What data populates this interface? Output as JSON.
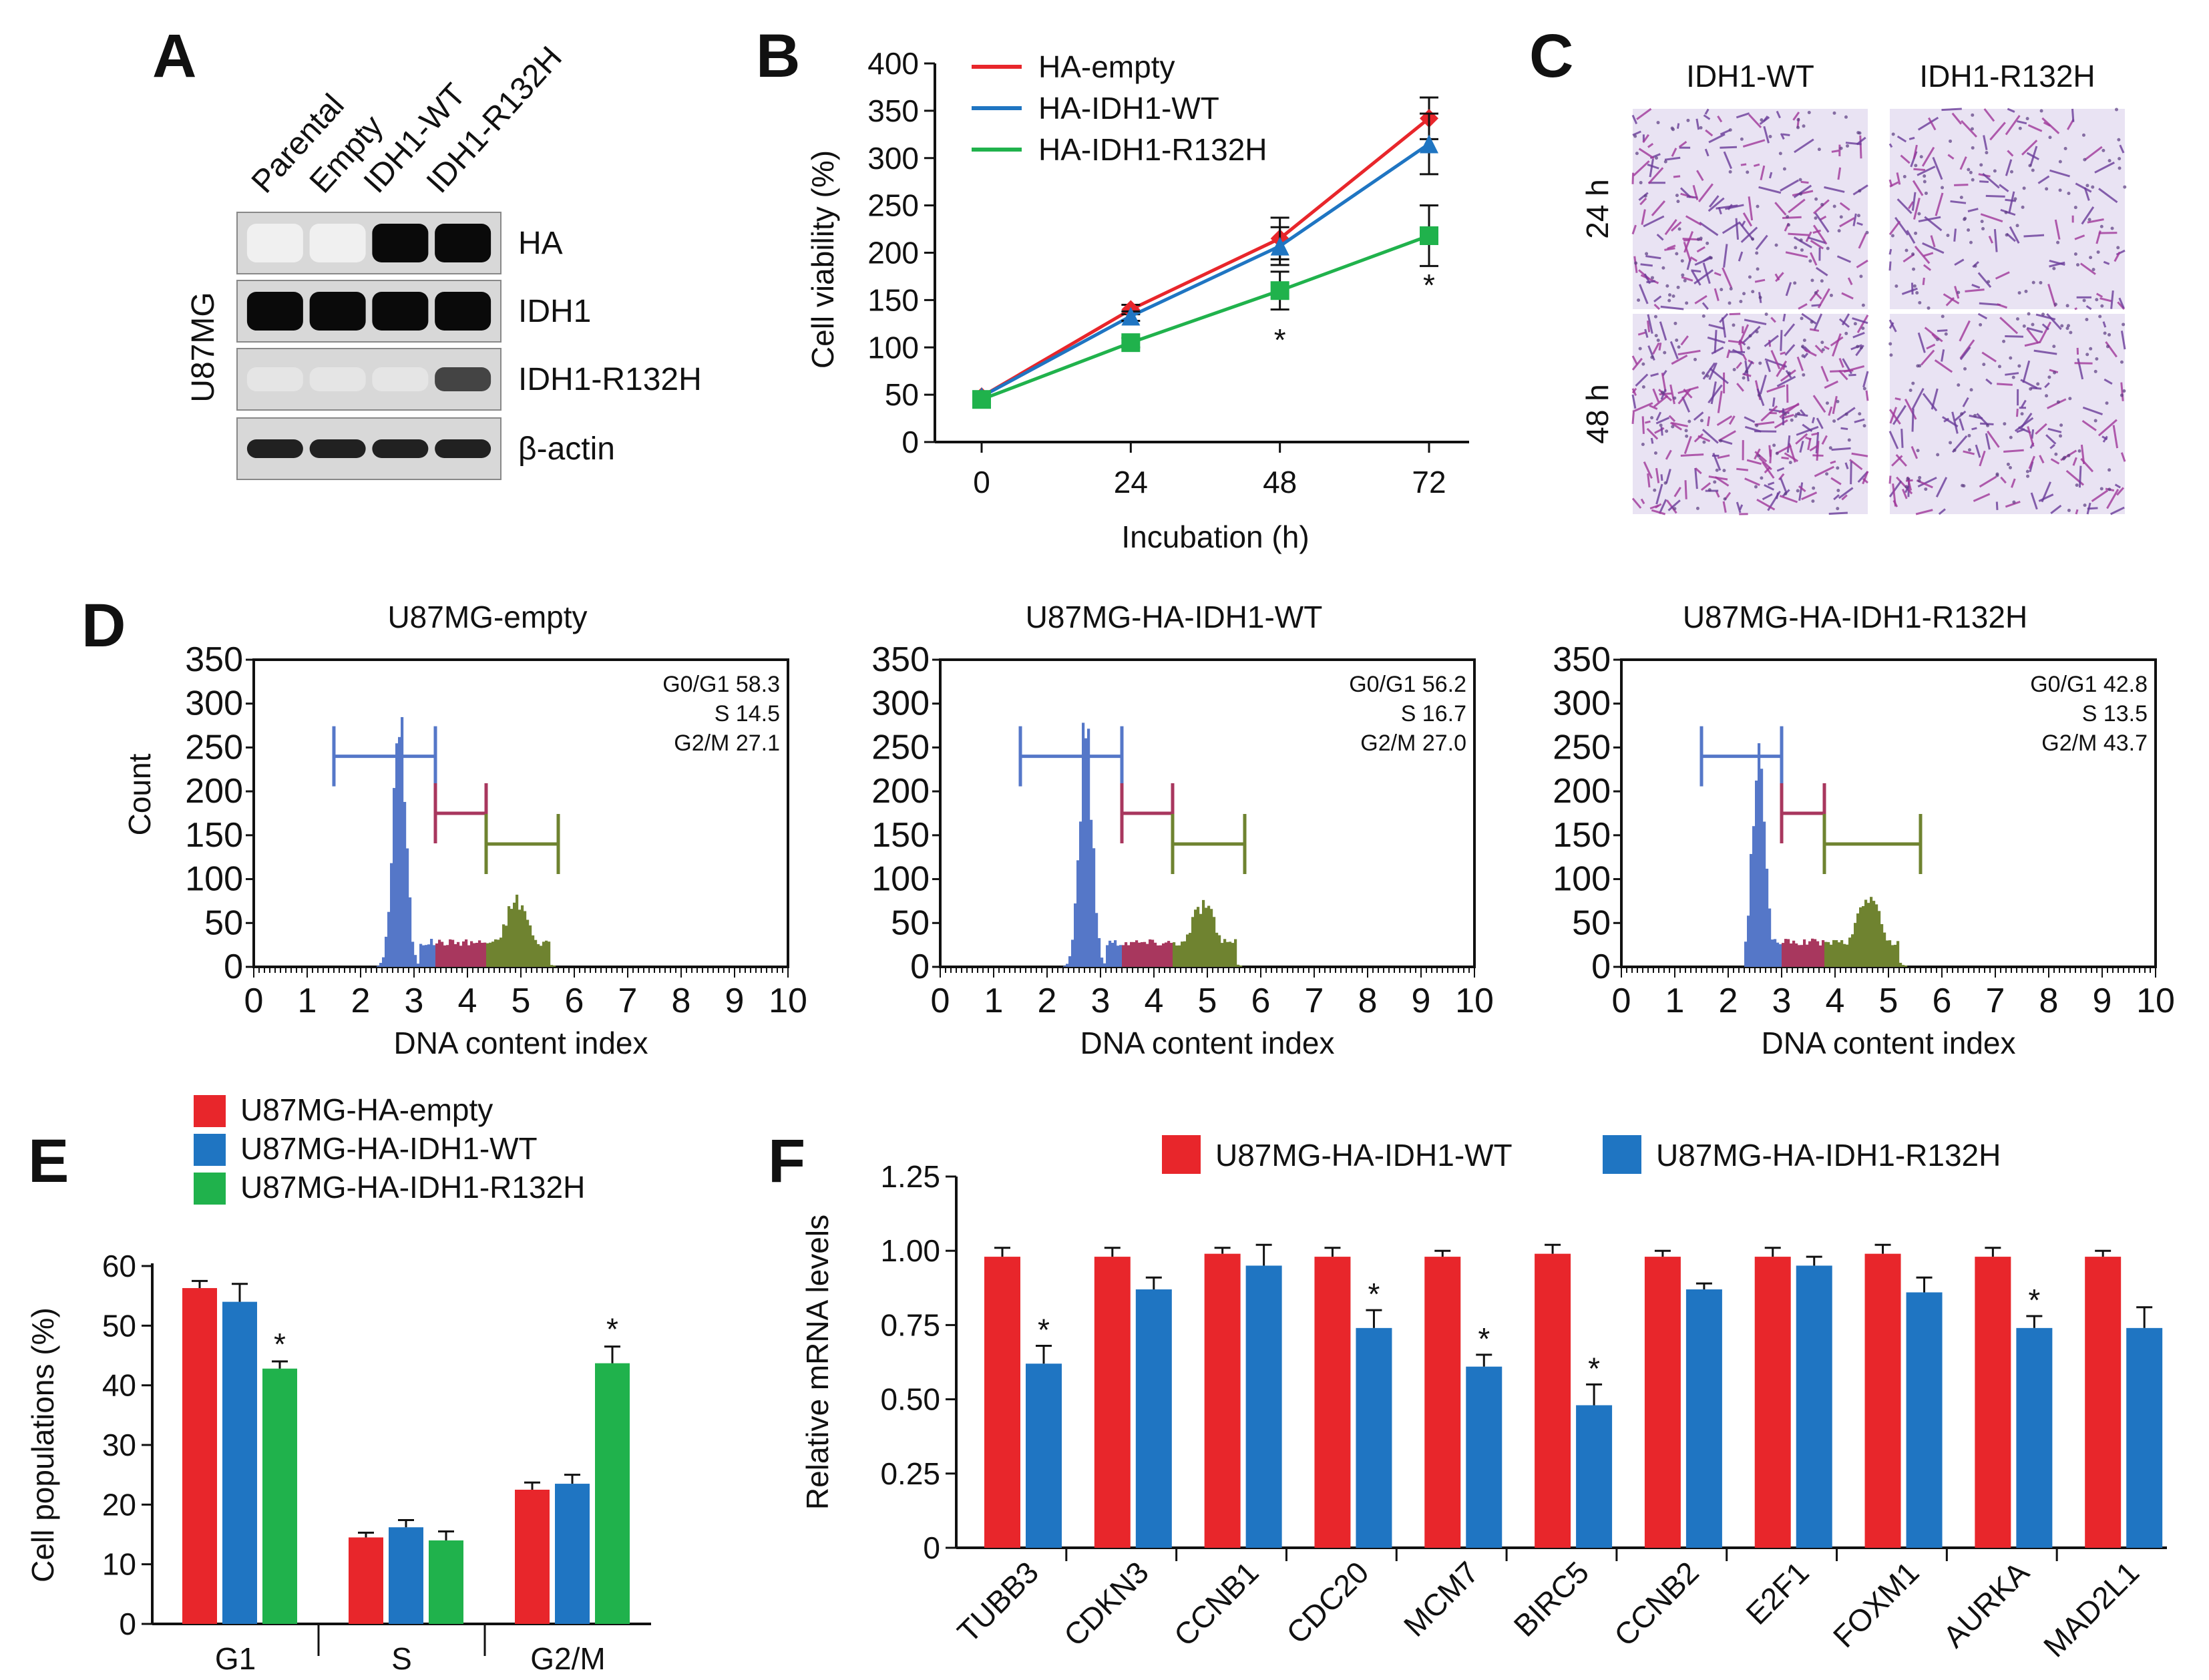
{
  "panels": {
    "A": {
      "label": "A",
      "cell_line": "U87MG",
      "lanes": [
        "Parental",
        "Empty",
        "IDH1-WT",
        "IDH1-R132H"
      ],
      "rows": [
        "HA",
        "IDH1",
        "IDH1-R132H",
        "β-actin"
      ],
      "band_intensity": [
        [
          0,
          0,
          1,
          1
        ],
        [
          1,
          1,
          1,
          1
        ],
        [
          0.05,
          0.05,
          0.05,
          0.75
        ],
        [
          0.9,
          0.9,
          0.9,
          0.9
        ]
      ]
    },
    "B": {
      "label": "B"
    },
    "C": {
      "label": "C",
      "columns": [
        "IDH1-WT",
        "IDH1-R132H"
      ],
      "rows": [
        "24 h",
        "48 h"
      ],
      "stain_density": [
        [
          0.55,
          0.35
        ],
        [
          0.95,
          0.45
        ]
      ]
    },
    "D": {
      "label": "D"
    },
    "E": {
      "label": "E"
    },
    "F": {
      "label": "F"
    }
  },
  "chart_data": [
    {
      "id": "B",
      "type": "line",
      "x": [
        0,
        24,
        48,
        72
      ],
      "xlabel": "Incubation (h)",
      "ylabel": "Cell viability (%)",
      "ylim": [
        0,
        400
      ],
      "yticks": [
        "0",
        "50",
        "100",
        "150",
        "200",
        "250",
        "300",
        "350",
        "400"
      ],
      "xticks": [
        "0",
        "24",
        "48",
        "72"
      ],
      "legend_position": "top-left",
      "series": [
        {
          "name": "HA-empty",
          "color": "#e8262b",
          "marker": "diamond",
          "values": [
            48,
            140,
            215,
            342
          ],
          "err": [
            3,
            5,
            22,
            22
          ]
        },
        {
          "name": "HA-IDH1-WT",
          "color": "#1f75c2",
          "marker": "triangle",
          "values": [
            48,
            133,
            207,
            315
          ],
          "err": [
            3,
            5,
            20,
            32
          ]
        },
        {
          "name": "HA-IDH1-R132H",
          "color": "#20b24c",
          "marker": "square",
          "values": [
            45,
            105,
            160,
            218
          ],
          "err": [
            3,
            5,
            20,
            32
          ]
        }
      ],
      "annotations": [
        {
          "x": 48,
          "text": "*"
        },
        {
          "x": 72,
          "text": "*"
        }
      ]
    },
    {
      "id": "D",
      "type": "histogram",
      "ylabel": "Count",
      "xlabel": "DNA content index",
      "xlim": [
        0,
        10
      ],
      "ylim": [
        0,
        350
      ],
      "xticks": [
        "0",
        "1",
        "2",
        "3",
        "4",
        "5",
        "6",
        "7",
        "8",
        "9",
        "10"
      ],
      "yticks": [
        "0",
        "50",
        "100",
        "150",
        "200",
        "250",
        "300",
        "350"
      ],
      "phase_colors": {
        "G0/G1": "#5577c8",
        "S": "#a8375e",
        "G2/M": "#6f8330"
      },
      "plots": [
        {
          "title": "U87MG-empty",
          "stats": [
            "G0/G1 58.3",
            "S 14.5",
            "G2/M 27.1"
          ],
          "g1_peak": 2.7,
          "g1_height": 280,
          "s_range": [
            3.4,
            4.35
          ],
          "g2_peak": 4.9,
          "g2_height": 75,
          "gates": {
            "g1": [
              1.5,
              3.4,
              240
            ],
            "s": [
              3.4,
              4.35,
              175
            ],
            "g2m": [
              4.35,
              5.7,
              140
            ]
          }
        },
        {
          "title": "U87MG-HA-IDH1-WT",
          "stats": [
            "G0/G1 56.2",
            "S 16.7",
            "G2/M 27.0"
          ],
          "g1_peak": 2.7,
          "g1_height": 270,
          "s_range": [
            3.4,
            4.35
          ],
          "g2_peak": 4.9,
          "g2_height": 72,
          "gates": {
            "g1": [
              1.5,
              3.4,
              240
            ],
            "s": [
              3.4,
              4.35,
              175
            ],
            "g2m": [
              4.35,
              5.7,
              140
            ]
          }
        },
        {
          "title": "U87MG-HA-IDH1-R132H",
          "stats": [
            "G0/G1 42.8",
            "S 13.5",
            "G2/M 43.7"
          ],
          "g1_peak": 2.55,
          "g1_height": 245,
          "s_range": [
            3.0,
            3.8
          ],
          "g2_peak": 4.6,
          "g2_height": 80,
          "gates": {
            "g1": [
              1.5,
              3.0,
              240
            ],
            "s": [
              3.0,
              3.8,
              175
            ],
            "g2m": [
              3.8,
              5.6,
              140
            ]
          }
        }
      ]
    },
    {
      "id": "E",
      "type": "bar",
      "categories": [
        "G1",
        "S",
        "G2/M"
      ],
      "ylabel": "Cell populations (%)",
      "ylim": [
        0,
        60
      ],
      "yticks": [
        "0",
        "10",
        "20",
        "30",
        "40",
        "50",
        "60"
      ],
      "legend_position": "top-left",
      "series": [
        {
          "name": "U87MG-HA-empty",
          "color": "#e8262b",
          "values": [
            56.3,
            14.5,
            22.5
          ],
          "err": [
            1.2,
            0.8,
            1.2
          ]
        },
        {
          "name": "U87MG-HA-IDH1-WT",
          "color": "#1f75c2",
          "values": [
            54.0,
            16.2,
            23.5
          ],
          "err": [
            3.0,
            1.2,
            1.5
          ]
        },
        {
          "name": "U87MG-HA-IDH1-R132H",
          "color": "#20b24c",
          "values": [
            42.8,
            14.0,
            43.7
          ],
          "err": [
            1.2,
            1.5,
            2.8
          ]
        }
      ],
      "annotations": [
        {
          "category": "G1",
          "series": 2,
          "text": "*"
        },
        {
          "category": "G2/M",
          "series": 2,
          "text": "*"
        }
      ]
    },
    {
      "id": "F",
      "type": "bar",
      "categories": [
        "TUBB3",
        "CDKN3",
        "CCNB1",
        "CDC20",
        "MCM7",
        "BIRC5",
        "CCNB2",
        "E2F1",
        "FOXM1",
        "AURKA",
        "MAD2L1"
      ],
      "ylabel": "Relative mRNA levels",
      "ylim": [
        0,
        1.25
      ],
      "yticks": [
        "0",
        "0.25",
        "0.50",
        "0.75",
        "1.00",
        "1.25"
      ],
      "legend_position": "top",
      "series": [
        {
          "name": "U87MG-HA-IDH1-WT",
          "color": "#e8262b",
          "values": [
            0.98,
            0.98,
            0.99,
            0.98,
            0.98,
            0.99,
            0.98,
            0.98,
            0.99,
            0.98,
            0.98
          ],
          "err": [
            0.03,
            0.03,
            0.02,
            0.03,
            0.02,
            0.03,
            0.02,
            0.03,
            0.03,
            0.03,
            0.02
          ]
        },
        {
          "name": "U87MG-HA-IDH1-R132H",
          "color": "#1f75c2",
          "values": [
            0.62,
            0.87,
            0.95,
            0.74,
            0.61,
            0.48,
            0.87,
            0.95,
            0.86,
            0.74,
            0.74
          ],
          "err": [
            0.06,
            0.04,
            0.07,
            0.06,
            0.04,
            0.07,
            0.02,
            0.03,
            0.05,
            0.04,
            0.07
          ]
        }
      ],
      "annotations": [
        {
          "index": 0,
          "text": "*"
        },
        {
          "index": 3,
          "text": "*"
        },
        {
          "index": 4,
          "text": "*"
        },
        {
          "index": 5,
          "text": "*"
        },
        {
          "index": 9,
          "text": "*"
        }
      ]
    }
  ]
}
